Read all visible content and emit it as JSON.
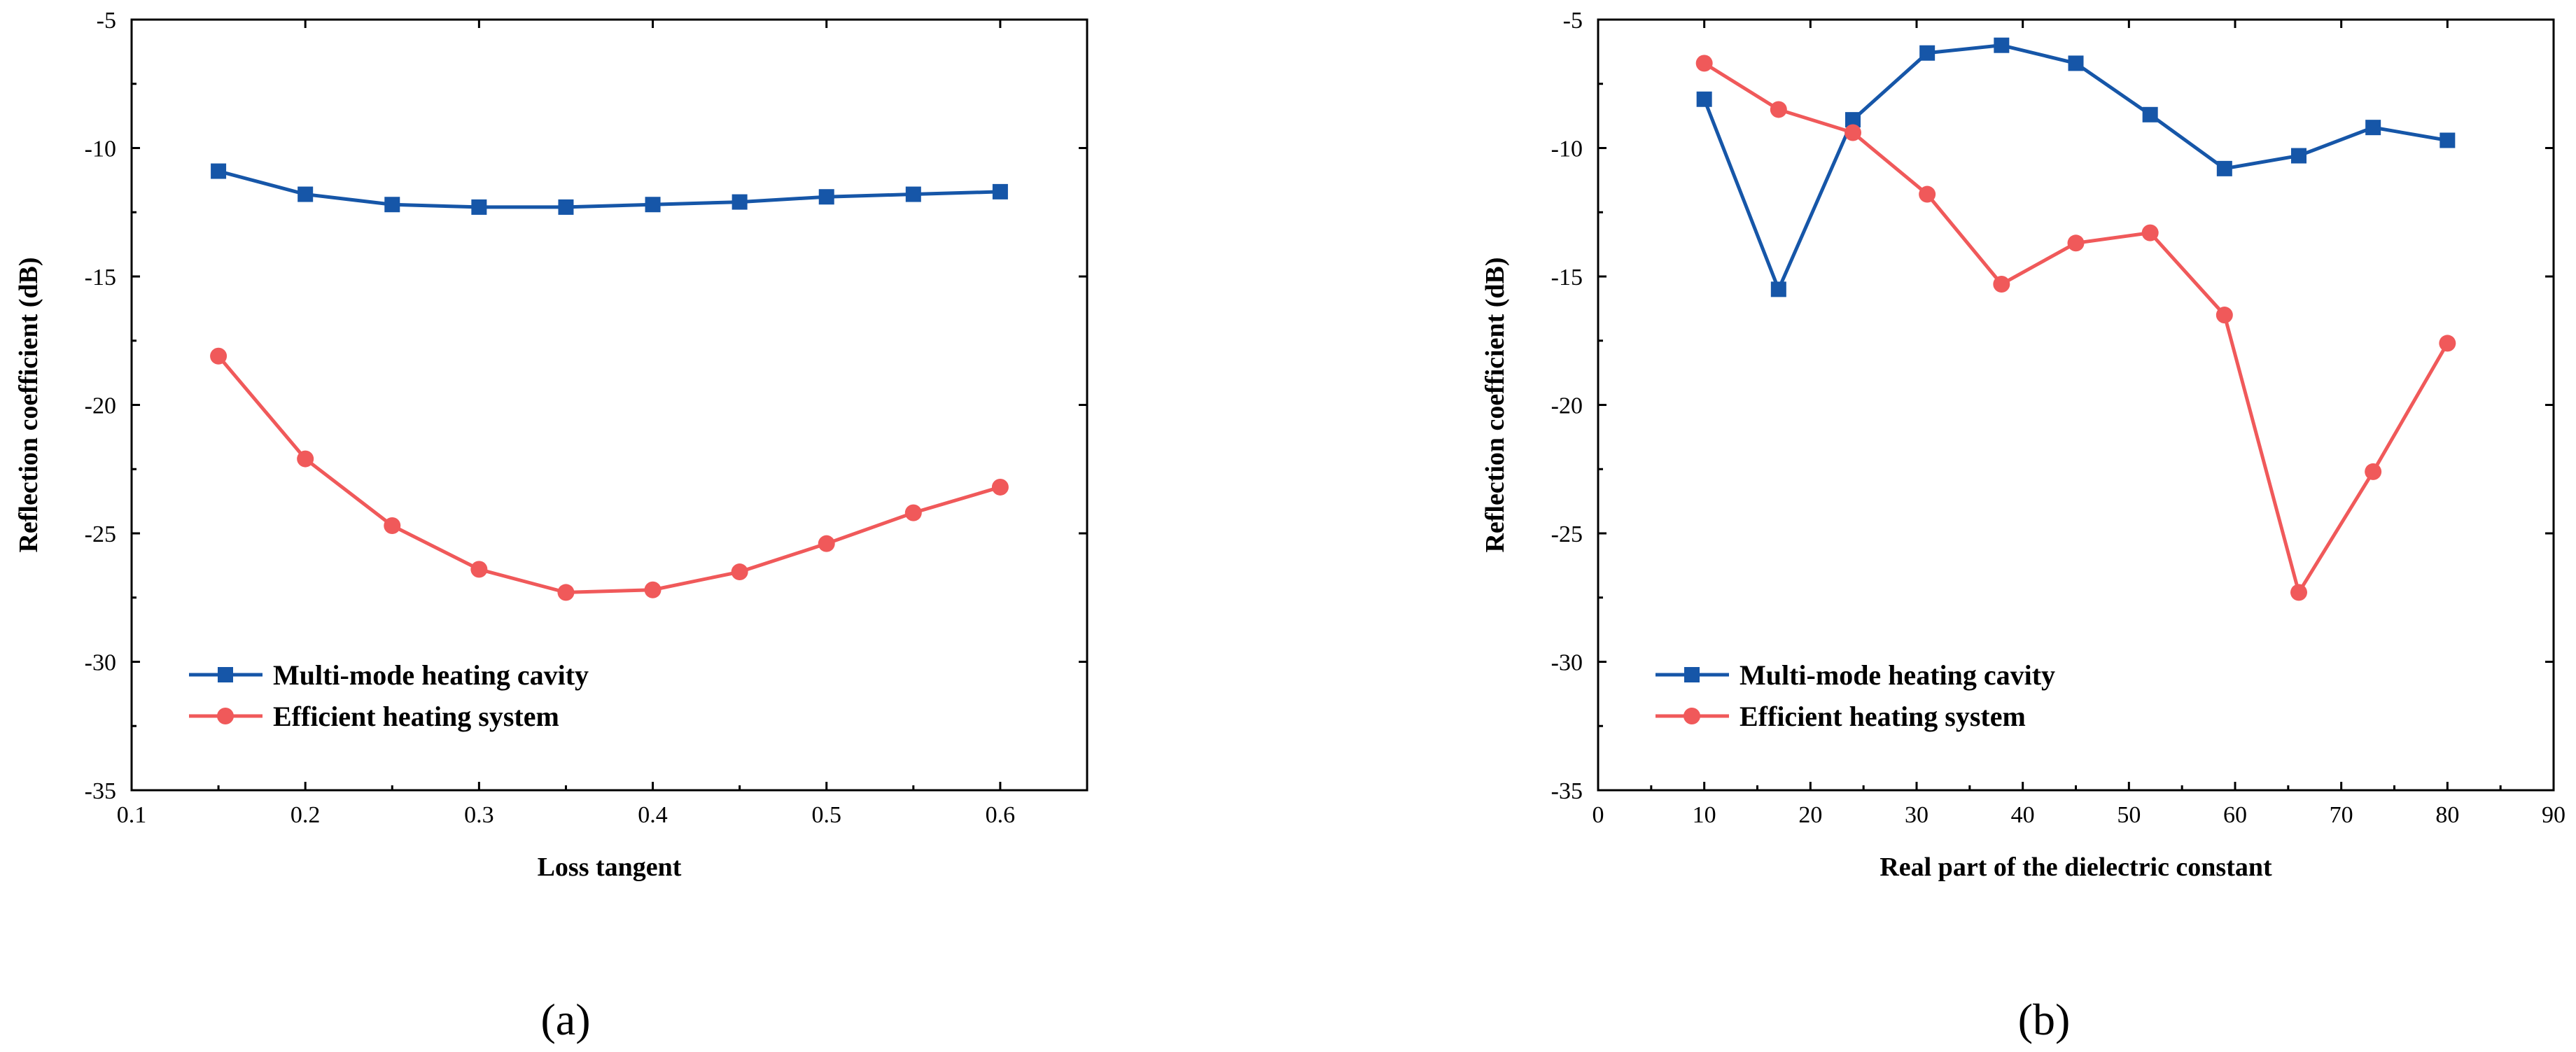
{
  "chart_data": [
    {
      "type": "line",
      "panel_label": "(a)",
      "xlabel": "Loss tangent",
      "ylabel": "Reflection coefficient (dB)",
      "xlim": [
        0.1,
        0.65
      ],
      "ylim": [
        -35,
        -5
      ],
      "xticks": [
        0.1,
        0.2,
        0.3,
        0.4,
        0.5,
        0.6
      ],
      "xtick_labels": [
        "0.1",
        "0.2",
        "0.3",
        "0.4",
        "0.5",
        "0.6"
      ],
      "yticks": [
        -35,
        -30,
        -25,
        -20,
        -15,
        -10,
        -5
      ],
      "ytick_labels": [
        "-35",
        "-30",
        "-25",
        "-20",
        "-15",
        "-10",
        "-5"
      ],
      "legend_position": "lower-left",
      "series": [
        {
          "name": "Multi-mode heating cavity",
          "color": "#1656a8",
          "marker": "square",
          "x": [
            0.15,
            0.2,
            0.25,
            0.3,
            0.35,
            0.4,
            0.45,
            0.5,
            0.55,
            0.6
          ],
          "y": [
            -10.9,
            -11.8,
            -12.2,
            -12.3,
            -12.3,
            -12.2,
            -12.1,
            -11.9,
            -11.8,
            -11.7
          ]
        },
        {
          "name": "Efficient heating system",
          "color": "#f0595a",
          "marker": "circle",
          "x": [
            0.15,
            0.2,
            0.25,
            0.3,
            0.35,
            0.4,
            0.45,
            0.5,
            0.55,
            0.6
          ],
          "y": [
            -18.1,
            -22.1,
            -24.7,
            -26.4,
            -27.3,
            -27.2,
            -26.5,
            -25.4,
            -24.2,
            -23.2
          ]
        }
      ]
    },
    {
      "type": "line",
      "panel_label": "(b)",
      "xlabel": "Real part of the dielectric constant",
      "ylabel": "Reflection coefficient (dB)",
      "xlim": [
        0,
        90
      ],
      "ylim": [
        -35,
        -5
      ],
      "xticks": [
        0,
        10,
        20,
        30,
        40,
        50,
        60,
        70,
        80,
        90
      ],
      "xtick_labels": [
        "0",
        "10",
        "20",
        "30",
        "40",
        "50",
        "60",
        "70",
        "80",
        "90"
      ],
      "yticks": [
        -35,
        -30,
        -25,
        -20,
        -15,
        -10,
        -5
      ],
      "ytick_labels": [
        "-35",
        "-30",
        "-25",
        "-20",
        "-15",
        "-10",
        "-5"
      ],
      "legend_position": "lower-left",
      "series": [
        {
          "name": "Multi-mode heating cavity",
          "color": "#1656a8",
          "marker": "square",
          "x": [
            10,
            17,
            24,
            31,
            38,
            45,
            52,
            59,
            66,
            73,
            80
          ],
          "y": [
            -8.1,
            -15.5,
            -8.9,
            -6.3,
            -6.0,
            -6.7,
            -8.7,
            -10.8,
            -10.3,
            -9.2,
            -9.7
          ]
        },
        {
          "name": "Efficient heating system",
          "color": "#f0595a",
          "marker": "circle",
          "x": [
            10,
            17,
            24,
            31,
            38,
            45,
            52,
            59,
            66,
            73,
            80
          ],
          "y": [
            -6.7,
            -8.5,
            -9.4,
            -11.8,
            -15.3,
            -13.7,
            -13.3,
            -16.5,
            -27.3,
            -22.6,
            -17.6
          ]
        }
      ]
    }
  ]
}
